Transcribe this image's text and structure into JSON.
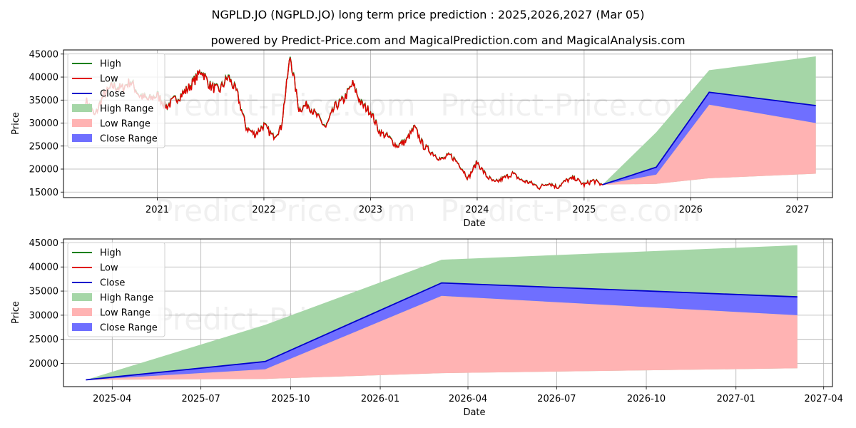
{
  "title": "NGPLD.JO (NGPLD.JO) long term price prediction : 2025,2026,2027 (Mar 05)",
  "subtitle": "powered by Predict-Price.com and MagicalPrediction.com and MagicalAnalysis.com",
  "watermark": "Predict-Price.com",
  "colors": {
    "high": "#008000",
    "low": "#e00000",
    "close": "#0000cc",
    "high_range": "#a5d6a7",
    "low_range": "#ffb3b3",
    "close_range": "#6f6fff"
  },
  "chart_data": [
    {
      "type": "line",
      "xlabel": "Date",
      "ylabel": "Price",
      "x_ticks": [
        "2021",
        "2022",
        "2023",
        "2024",
        "2025",
        "2026",
        "2027"
      ],
      "y_ticks": [
        "15000",
        "20000",
        "25000",
        "30000",
        "35000",
        "40000",
        "45000"
      ],
      "xlim": [
        "2020-02-15",
        "2027-05-01"
      ],
      "ylim": [
        13800,
        45900
      ],
      "grid": true,
      "legend_position": "top-left",
      "legend": [
        "High",
        "Low",
        "Close",
        "High Range",
        "Low Range",
        "Close Range"
      ],
      "history": {
        "dates": [
          "2020-05-01",
          "2020-06-01",
          "2020-07-01",
          "2020-08-01",
          "2020-09-01",
          "2020-10-01",
          "2020-11-01",
          "2020-12-01",
          "2021-01-01",
          "2021-02-01",
          "2021-03-01",
          "2021-04-01",
          "2021-05-01",
          "2021-06-01",
          "2021-07-01",
          "2021-08-01",
          "2021-09-01",
          "2021-10-01",
          "2021-11-01",
          "2021-12-01",
          "2022-01-01",
          "2022-02-01",
          "2022-03-01",
          "2022-04-01",
          "2022-05-01",
          "2022-06-01",
          "2022-07-01",
          "2022-08-01",
          "2022-09-01",
          "2022-10-01",
          "2022-11-01",
          "2022-12-01",
          "2023-01-01",
          "2023-02-01",
          "2023-03-01",
          "2023-04-01",
          "2023-05-01",
          "2023-06-01",
          "2023-07-01",
          "2023-08-01",
          "2023-09-01",
          "2023-10-01",
          "2023-11-01",
          "2023-12-01",
          "2024-01-01",
          "2024-02-01",
          "2024-03-01",
          "2024-04-01",
          "2024-05-01",
          "2024-06-01",
          "2024-07-01",
          "2024-08-01",
          "2024-09-01",
          "2024-10-01",
          "2024-11-01",
          "2024-12-01",
          "2025-01-01",
          "2025-02-01",
          "2025-03-05"
        ],
        "values": [
          35000,
          31500,
          36000,
          38000,
          37500,
          39000,
          36000,
          35000,
          36000,
          33500,
          35000,
          36500,
          38500,
          41500,
          38000,
          37000,
          40000,
          36500,
          29000,
          27500,
          29500,
          27000,
          29000,
          44500,
          33000,
          34000,
          31500,
          29000,
          33500,
          35000,
          38500,
          34000,
          32500,
          28000,
          27000,
          25000,
          26000,
          29000,
          25000,
          23500,
          22000,
          23000,
          21000,
          18000,
          21500,
          18500,
          17000,
          18000,
          19000,
          17500,
          17000,
          16000,
          17000,
          16000,
          17500,
          18000,
          16500,
          17500,
          16500
        ]
      },
      "forecast": {
        "dates": [
          "2025-03-05",
          "2025-09-05",
          "2026-03-05",
          "2027-03-05"
        ],
        "close": [
          16600,
          20400,
          36700,
          33800
        ],
        "high_range": {
          "upper": [
            16600,
            28000,
            41500,
            44500
          ],
          "lower": [
            16600,
            16800,
            18000,
            19000
          ]
        },
        "low_range": {
          "upper": [
            16600,
            18800,
            34000,
            30000
          ],
          "lower": [
            16600,
            16800,
            18000,
            19000
          ]
        },
        "close_range": {
          "upper": [
            16600,
            20400,
            36700,
            33800
          ],
          "lower": [
            16600,
            18800,
            34000,
            30000
          ]
        }
      }
    },
    {
      "type": "line",
      "xlabel": "Date",
      "ylabel": "Price",
      "x_ticks": [
        "2025-04",
        "2025-07",
        "2025-10",
        "2026-01",
        "2026-04",
        "2026-07",
        "2026-10",
        "2027-01",
        "2027-04"
      ],
      "y_ticks": [
        "20000",
        "25000",
        "30000",
        "35000",
        "40000",
        "45000"
      ],
      "xlim": [
        "2025-02-10",
        "2027-04-10"
      ],
      "ylim": [
        15200,
        45800
      ],
      "grid": true,
      "legend_position": "top-left",
      "legend": [
        "High",
        "Low",
        "Close",
        "High Range",
        "Low Range",
        "Close Range"
      ],
      "forecast": {
        "dates": [
          "2025-03-05",
          "2025-09-05",
          "2026-03-05",
          "2027-03-05"
        ],
        "close": [
          16600,
          20400,
          36700,
          33800
        ],
        "high_range": {
          "upper": [
            16600,
            28000,
            41500,
            44500
          ],
          "lower": [
            16600,
            16800,
            18000,
            19000
          ]
        },
        "low_range": {
          "upper": [
            16600,
            18800,
            34000,
            30000
          ],
          "lower": [
            16600,
            16800,
            18000,
            19000
          ]
        },
        "close_range": {
          "upper": [
            16600,
            20400,
            36700,
            33800
          ],
          "lower": [
            16600,
            18800,
            34000,
            30000
          ]
        }
      }
    }
  ]
}
